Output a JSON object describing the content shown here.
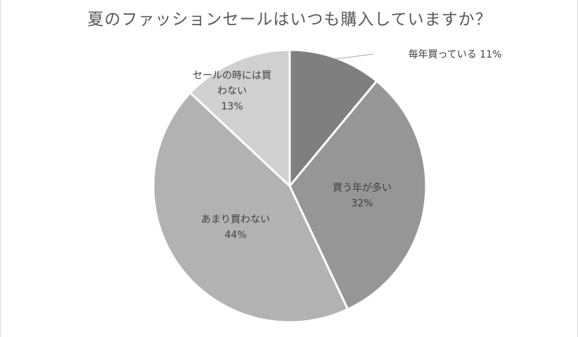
{
  "chart_data": {
    "type": "pie",
    "title": "夏のファッションセールはいつも購入していますか？",
    "slices": [
      {
        "label_lines": [
          "毎年買っている 11%"
        ],
        "value": 11,
        "color": "#7f7f7f"
      },
      {
        "label_lines": [
          "買う年が多い",
          "32%"
        ],
        "value": 32,
        "color": "#969696"
      },
      {
        "label_lines": [
          "あまり買わない",
          "44%"
        ],
        "value": 44,
        "color": "#b2b2b2"
      },
      {
        "label_lines": [
          "セールの時には買",
          "わない",
          "13%"
        ],
        "value": 13,
        "color": "#d0d0d0"
      }
    ],
    "legend": "none",
    "start_angle_deg": 0,
    "direction": "clockwise"
  }
}
